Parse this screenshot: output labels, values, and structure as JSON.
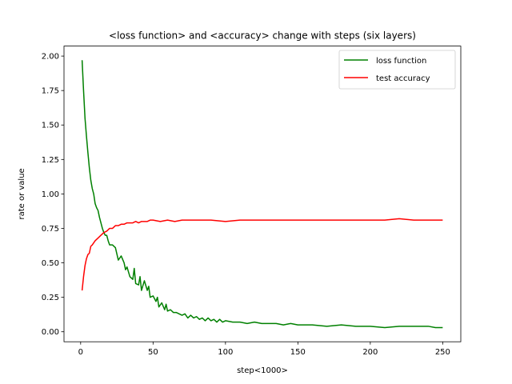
{
  "chart_data": {
    "type": "line",
    "title": "<loss function> and <accuracy> change with steps (six layers)",
    "xlabel": "step<1000>",
    "ylabel": "rate or value",
    "xlim": [
      -11.5,
      262.5
    ],
    "ylim": [
      -0.0725,
      2.0725
    ],
    "xticks": [
      0,
      50,
      100,
      150,
      200,
      250
    ],
    "yticks": [
      0.0,
      0.25,
      0.5,
      0.75,
      1.0,
      1.25,
      1.5,
      1.75,
      2.0
    ],
    "xtick_labels": [
      "0",
      "50",
      "100",
      "150",
      "200",
      "250"
    ],
    "ytick_labels": [
      "0.00",
      "0.25",
      "0.50",
      "0.75",
      "1.00",
      "1.25",
      "1.50",
      "1.75",
      "2.00"
    ],
    "grid": false,
    "legend": "top-right",
    "series": [
      {
        "name": "loss function",
        "color": "#008000",
        "x": [
          1,
          2,
          3,
          4,
          5,
          6,
          7,
          8,
          9,
          10,
          11,
          12,
          13,
          14,
          15,
          16,
          17,
          18,
          19,
          20,
          22,
          24,
          26,
          28,
          30,
          31,
          32,
          34,
          36,
          37,
          38,
          40,
          41,
          42,
          44,
          46,
          47,
          48,
          50,
          52,
          53,
          54,
          56,
          58,
          59,
          60,
          62,
          64,
          66,
          68,
          70,
          72,
          74,
          76,
          78,
          80,
          82,
          84,
          86,
          88,
          90,
          92,
          94,
          96,
          98,
          100,
          105,
          110,
          115,
          120,
          125,
          130,
          135,
          140,
          145,
          150,
          160,
          170,
          180,
          190,
          200,
          210,
          220,
          230,
          240,
          245,
          250
        ],
        "y": [
          1.97,
          1.75,
          1.55,
          1.42,
          1.3,
          1.19,
          1.1,
          1.04,
          1.0,
          0.93,
          0.9,
          0.88,
          0.83,
          0.79,
          0.75,
          0.72,
          0.7,
          0.7,
          0.66,
          0.63,
          0.63,
          0.61,
          0.52,
          0.55,
          0.5,
          0.45,
          0.47,
          0.4,
          0.38,
          0.46,
          0.35,
          0.34,
          0.4,
          0.3,
          0.37,
          0.3,
          0.33,
          0.25,
          0.26,
          0.22,
          0.25,
          0.18,
          0.21,
          0.16,
          0.2,
          0.15,
          0.16,
          0.14,
          0.14,
          0.13,
          0.12,
          0.13,
          0.1,
          0.12,
          0.1,
          0.11,
          0.09,
          0.1,
          0.08,
          0.1,
          0.08,
          0.09,
          0.07,
          0.09,
          0.07,
          0.08,
          0.07,
          0.07,
          0.06,
          0.07,
          0.06,
          0.06,
          0.06,
          0.05,
          0.06,
          0.05,
          0.05,
          0.04,
          0.05,
          0.04,
          0.04,
          0.03,
          0.04,
          0.04,
          0.04,
          0.03,
          0.03
        ]
      },
      {
        "name": "test accuracy",
        "color": "#ff0000",
        "x": [
          1,
          2,
          3,
          4,
          5,
          6,
          7,
          8,
          10,
          12,
          14,
          16,
          18,
          20,
          22,
          24,
          26,
          28,
          30,
          32,
          34,
          36,
          38,
          40,
          42,
          44,
          46,
          48,
          50,
          55,
          60,
          65,
          70,
          75,
          80,
          90,
          100,
          110,
          120,
          130,
          140,
          150,
          160,
          170,
          180,
          190,
          200,
          210,
          220,
          230,
          240,
          250
        ],
        "y": [
          0.3,
          0.4,
          0.48,
          0.53,
          0.56,
          0.57,
          0.62,
          0.63,
          0.66,
          0.68,
          0.7,
          0.72,
          0.73,
          0.75,
          0.75,
          0.77,
          0.77,
          0.78,
          0.78,
          0.79,
          0.79,
          0.79,
          0.8,
          0.79,
          0.8,
          0.8,
          0.8,
          0.81,
          0.81,
          0.8,
          0.81,
          0.8,
          0.81,
          0.81,
          0.81,
          0.81,
          0.8,
          0.81,
          0.81,
          0.81,
          0.81,
          0.81,
          0.81,
          0.81,
          0.81,
          0.81,
          0.81,
          0.81,
          0.82,
          0.81,
          0.81,
          0.81
        ]
      }
    ]
  }
}
